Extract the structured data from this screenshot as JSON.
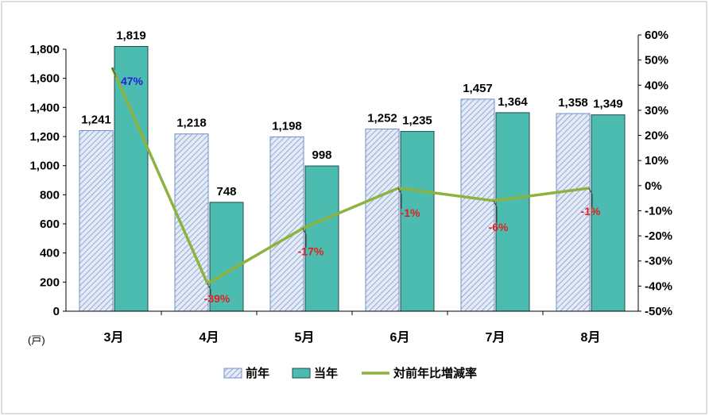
{
  "chart_data": {
    "type": "bar",
    "categories": [
      "3月",
      "4月",
      "5月",
      "6月",
      "7月",
      "8月"
    ],
    "series": [
      {
        "name": "前年",
        "type": "bar",
        "values": [
          1241,
          1218,
          1198,
          1252,
          1457,
          1358
        ],
        "labels": [
          "1,241",
          "1,218",
          "1,198",
          "1,252",
          "1,457",
          "1,358"
        ],
        "color": "#dbe3f3",
        "pattern": "diagonal-hatch",
        "stroke": "#6f8fc9"
      },
      {
        "name": "当年",
        "type": "bar",
        "values": [
          1819,
          748,
          998,
          1235,
          1364,
          1349
        ],
        "labels": [
          "1,819",
          "748",
          "998",
          "1,235",
          "1,364",
          "1,349"
        ],
        "color": "#4dbcb0",
        "stroke": "#1f4d4a"
      },
      {
        "name": "対前年比増減率",
        "type": "line",
        "axis": "right",
        "values": [
          47,
          -39,
          -17,
          -1,
          -6,
          -1
        ],
        "labels": [
          "47%",
          "-39%",
          "-17%",
          "-1%",
          "-6%",
          "-1%"
        ],
        "color": "#8db33f",
        "label_colors": [
          "#1f1fd6",
          "#e0201f",
          "#e0201f",
          "#e0201f",
          "#e0201f",
          "#e0201f"
        ]
      }
    ],
    "y_left": {
      "min": 0,
      "max": 1800,
      "ticks": [
        0,
        200,
        400,
        600,
        800,
        1000,
        1200,
        1400,
        1600,
        1800
      ],
      "tick_labels": [
        "0",
        "200",
        "400",
        "600",
        "800",
        "1,000",
        "1,200",
        "1,400",
        "1,600",
        "1,800"
      ],
      "unit": "(戸)"
    },
    "y_right": {
      "min": -50,
      "max": 60,
      "ticks": [
        -50,
        -40,
        -30,
        -20,
        -10,
        0,
        10,
        20,
        30,
        40,
        50,
        60
      ],
      "tick_labels": [
        "-50%",
        "-40%",
        "-30%",
        "-20%",
        "-10%",
        "0%",
        "10%",
        "20%",
        "30%",
        "40%",
        "50%",
        "60%"
      ]
    },
    "legend": {
      "position": "bottom",
      "entries": [
        "前年",
        "当年",
        "対前年比増減率"
      ]
    },
    "grid": false
  }
}
